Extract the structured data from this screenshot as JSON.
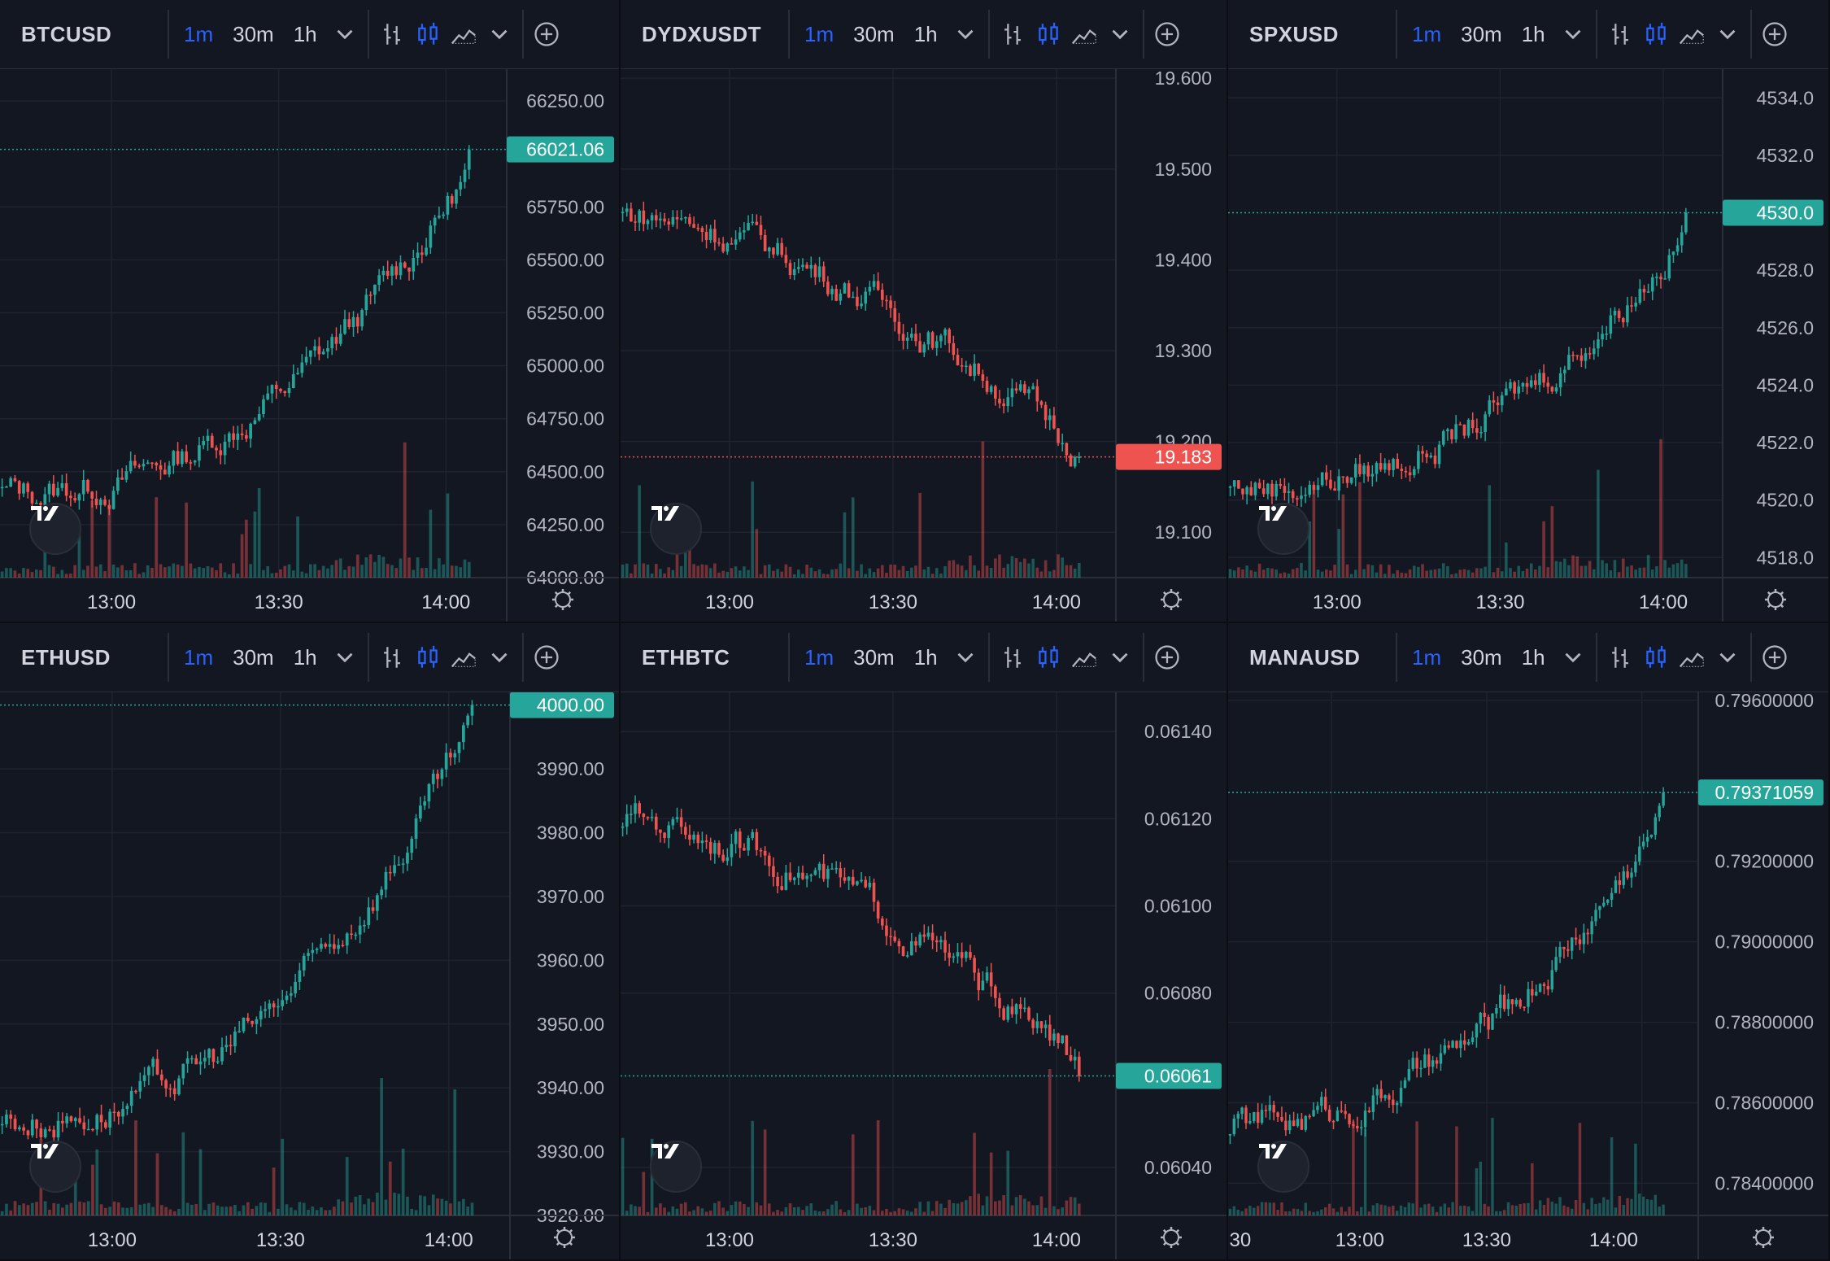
{
  "timeframes": [
    "1m",
    "30m",
    "1h"
  ],
  "active_timeframe": "1m",
  "toolbar_icons": [
    "bar-chart-icon",
    "candles-icon",
    "area-chart-icon",
    "chevron-down-icon",
    "add-circle-icon"
  ],
  "colors": {
    "up": "#26a69a",
    "down": "#ef5350",
    "accent": "#2962ff",
    "bg": "#131722",
    "grid": "#1f2330"
  },
  "panels": [
    {
      "symbol": "BTCUSD",
      "price_ticks": [
        "66250.00",
        "65750.00",
        "65500.00",
        "65250.00",
        "65000.00",
        "64750.00",
        "64500.00",
        "64250.00",
        "64000.00"
      ],
      "last_price": "66021.06",
      "last_price_color": "#26a69a",
      "time_ticks": [
        "13:00",
        "13:30",
        "14:00"
      ],
      "chart_data": {
        "type": "candlestick",
        "ylim": [
          64000,
          66400
        ],
        "last": 66021.06,
        "trend": "up",
        "start": 64400
      }
    },
    {
      "symbol": "DYDXUSDT",
      "price_ticks": [
        "19.600",
        "19.500",
        "19.400",
        "19.300",
        "19.200",
        "19.100"
      ],
      "last_price": "19.183",
      "last_price_color": "#ef5350",
      "time_ticks": [
        "13:00",
        "13:30",
        "14:00"
      ],
      "chart_data": {
        "type": "candlestick",
        "ylim": [
          19.05,
          19.61
        ],
        "last": 19.183,
        "trend": "down",
        "start": 19.45
      }
    },
    {
      "symbol": "SPXUSD",
      "price_ticks": [
        "4534.0",
        "4532.0",
        "4528.0",
        "4526.0",
        "4524.0",
        "4522.0",
        "4520.0",
        "4518.0"
      ],
      "last_price": "4530.0",
      "last_price_color": "#26a69a",
      "time_ticks": [
        "13:00",
        "13:30",
        "14:00"
      ],
      "chart_data": {
        "type": "candlestick",
        "ylim": [
          4517.3,
          4535.0
        ],
        "last": 4530.0,
        "trend": "up",
        "start": 4520.5
      }
    },
    {
      "symbol": "ETHUSD",
      "price_ticks": [
        "3990.00",
        "3980.00",
        "3970.00",
        "3960.00",
        "3950.00",
        "3940.00",
        "3930.00",
        "3920.00"
      ],
      "last_price": "4000.00",
      "last_price_color": "#26a69a",
      "time_ticks": [
        "13:00",
        "13:30",
        "14:00"
      ],
      "chart_data": {
        "type": "candlestick",
        "ylim": [
          3920,
          4002
        ],
        "last": 4000.0,
        "trend": "up",
        "start": 3935
      }
    },
    {
      "symbol": "ETHBTC",
      "price_ticks": [
        "0.06140",
        "0.06120",
        "0.06100",
        "0.06080",
        "0.06040"
      ],
      "last_price": "0.06061",
      "last_price_color": "#26a69a",
      "time_ticks": [
        "13:00",
        "13:30",
        "14:00"
      ],
      "chart_data": {
        "type": "candlestick",
        "ylim": [
          0.06029,
          0.06149
        ],
        "last": 0.06061,
        "trend": "down",
        "start": 0.0612
      }
    },
    {
      "symbol": "MANAUSD",
      "price_ticks": [
        "0.79600000",
        "0.79200000",
        "0.79000000",
        "0.78800000",
        "0.78600000",
        "0.78400000"
      ],
      "last_price": "0.79371059",
      "last_price_color": "#26a69a",
      "time_ticks": [
        ":30",
        "13:00",
        "13:30",
        "14:00"
      ],
      "chart_data": {
        "type": "candlestick",
        "ylim": [
          0.7832,
          0.7962
        ],
        "last": 0.79371059,
        "trend": "up",
        "start": 0.7855
      }
    }
  ]
}
